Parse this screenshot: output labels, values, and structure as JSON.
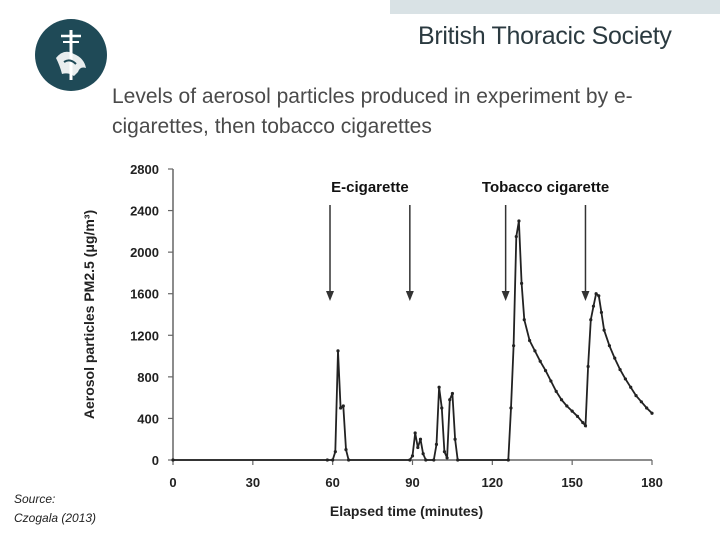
{
  "header": {
    "brand_name": "British Thoracic Society",
    "logo_icon": "society-crest-icon",
    "logo_color": "#1f4a57"
  },
  "slide": {
    "title": "Levels of aerosol particles produced in experiment by e-cigarettes, then tobacco cigarettes",
    "source_line1": "Source:",
    "source_line2": "Czogala (2013)"
  },
  "chart_data": {
    "type": "line",
    "xlabel": "Elapsed time (minutes)",
    "ylabel": "Aerosol particles PM2.5 (μg/m³)",
    "xlim": [
      0,
      180
    ],
    "ylim": [
      0,
      2800
    ],
    "x_ticks": [
      0,
      30,
      60,
      90,
      120,
      150,
      180
    ],
    "y_ticks": [
      0,
      400,
      800,
      1200,
      1600,
      2000,
      2400,
      2800
    ],
    "grid": false,
    "annotations": [
      {
        "text": "E-cigarette",
        "arrows_x": [
          59,
          89
        ]
      },
      {
        "text": "Tobacco cigarette",
        "arrows_x": [
          125,
          155
        ]
      }
    ],
    "series": [
      {
        "points": [
          [
            0,
            0
          ],
          [
            58,
            0
          ],
          [
            60,
            0
          ],
          [
            61,
            80
          ],
          [
            62,
            1050
          ],
          [
            63,
            500
          ],
          [
            64,
            520
          ],
          [
            65,
            100
          ],
          [
            66,
            0
          ],
          [
            89,
            0
          ],
          [
            90,
            40
          ],
          [
            91,
            260
          ],
          [
            92,
            120
          ],
          [
            93,
            200
          ],
          [
            94,
            60
          ],
          [
            95,
            0
          ],
          [
            98,
            0
          ],
          [
            99,
            150
          ],
          [
            100,
            700
          ],
          [
            101,
            500
          ],
          [
            102,
            80
          ],
          [
            103,
            20
          ],
          [
            104,
            580
          ],
          [
            105,
            640
          ],
          [
            106,
            200
          ],
          [
            107,
            0
          ],
          [
            126,
            0
          ],
          [
            127,
            500
          ],
          [
            128,
            1100
          ],
          [
            129,
            2150
          ],
          [
            130,
            2300
          ],
          [
            131,
            1700
          ],
          [
            132,
            1350
          ],
          [
            134,
            1150
          ],
          [
            136,
            1050
          ],
          [
            138,
            950
          ],
          [
            140,
            860
          ],
          [
            142,
            760
          ],
          [
            144,
            660
          ],
          [
            146,
            580
          ],
          [
            148,
            520
          ],
          [
            150,
            470
          ],
          [
            152,
            420
          ],
          [
            154,
            360
          ],
          [
            155,
            330
          ],
          [
            156,
            900
          ],
          [
            157,
            1350
          ],
          [
            158,
            1480
          ],
          [
            159,
            1600
          ],
          [
            160,
            1580
          ],
          [
            161,
            1420
          ],
          [
            162,
            1250
          ],
          [
            164,
            1100
          ],
          [
            166,
            980
          ],
          [
            168,
            870
          ],
          [
            170,
            780
          ],
          [
            172,
            700
          ],
          [
            174,
            620
          ],
          [
            176,
            560
          ],
          [
            178,
            500
          ],
          [
            180,
            450
          ]
        ]
      }
    ]
  }
}
